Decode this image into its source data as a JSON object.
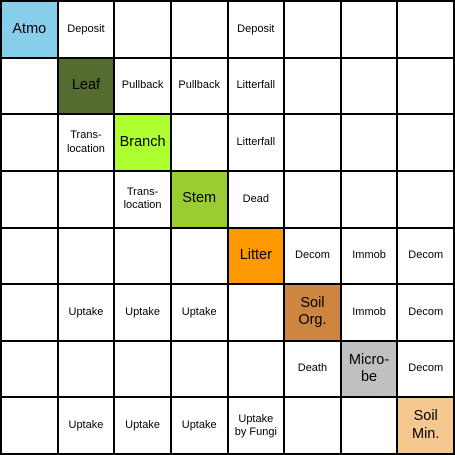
{
  "diagonal": [
    {
      "label": "Atmo",
      "color": "#87ceeb"
    },
    {
      "label": "Leaf",
      "color": "#556b2f"
    },
    {
      "label": "Branch",
      "color": "#adff2f"
    },
    {
      "label": "Stem",
      "color": "#9acd32"
    },
    {
      "label": "Litter",
      "color": "#ff9900"
    },
    {
      "label": "Soil\nOrg.",
      "color": "#cd853f"
    },
    {
      "label": "Micro-\nbe",
      "color": "#c0c0c0"
    },
    {
      "label": "Soil\nMin.",
      "color": "#f5c890"
    }
  ],
  "flows": [
    {
      "row": 0,
      "col": 1,
      "label": "Deposit"
    },
    {
      "row": 0,
      "col": 4,
      "label": "Deposit"
    },
    {
      "row": 1,
      "col": 2,
      "label": "Pullback"
    },
    {
      "row": 1,
      "col": 3,
      "label": "Pullback"
    },
    {
      "row": 1,
      "col": 4,
      "label": "Litterfall"
    },
    {
      "row": 2,
      "col": 1,
      "label": "Trans-\nlocation"
    },
    {
      "row": 2,
      "col": 4,
      "label": "Litterfall"
    },
    {
      "row": 3,
      "col": 2,
      "label": "Trans-\nlocation"
    },
    {
      "row": 3,
      "col": 4,
      "label": "Dead"
    },
    {
      "row": 4,
      "col": 5,
      "label": "Decom"
    },
    {
      "row": 4,
      "col": 6,
      "label": "Immob"
    },
    {
      "row": 4,
      "col": 7,
      "label": "Decom"
    },
    {
      "row": 5,
      "col": 1,
      "label": "Uptake"
    },
    {
      "row": 5,
      "col": 2,
      "label": "Uptake"
    },
    {
      "row": 5,
      "col": 3,
      "label": "Uptake"
    },
    {
      "row": 5,
      "col": 6,
      "label": "Immob"
    },
    {
      "row": 5,
      "col": 7,
      "label": "Decom"
    },
    {
      "row": 6,
      "col": 5,
      "label": "Death"
    },
    {
      "row": 6,
      "col": 7,
      "label": "Decom"
    },
    {
      "row": 7,
      "col": 1,
      "label": "Uptake"
    },
    {
      "row": 7,
      "col": 2,
      "label": "Uptake"
    },
    {
      "row": 7,
      "col": 3,
      "label": "Uptake"
    },
    {
      "row": 7,
      "col": 4,
      "label": "Uptake\nby Fungi"
    }
  ]
}
